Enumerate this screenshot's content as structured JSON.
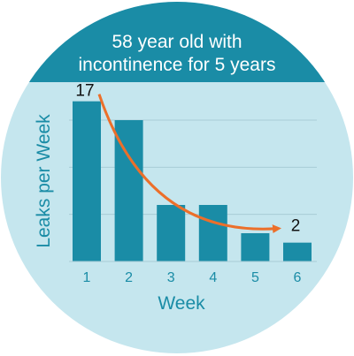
{
  "title_lines": [
    "58 year old with",
    "incontinence for 5 years"
  ],
  "colors": {
    "circle_bg": "#c5e6ee",
    "header_band": "#1a8ca6",
    "bar": "#1a8ca6",
    "arrow": "#ec6f2a",
    "gridline": "#a9ccd6",
    "axis_text": "#1a8ca6",
    "title_text": "#ffffff",
    "annotation_text": "#111111"
  },
  "chart_data": {
    "type": "bar",
    "title": "58 year old with incontinence for 5 years",
    "xlabel": "Week",
    "ylabel": "Leaks per Week",
    "categories": [
      "1",
      "2",
      "3",
      "4",
      "5",
      "6"
    ],
    "values": [
      17,
      15,
      6,
      6,
      3,
      2
    ],
    "ylim": [
      0,
      18
    ],
    "grid": true,
    "annotations": [
      {
        "category": "1",
        "text": "17"
      },
      {
        "category": "6",
        "text": "2"
      }
    ],
    "trend_arrow": {
      "from_category": "1",
      "to_category": "6",
      "color": "#ec6f2a"
    }
  }
}
